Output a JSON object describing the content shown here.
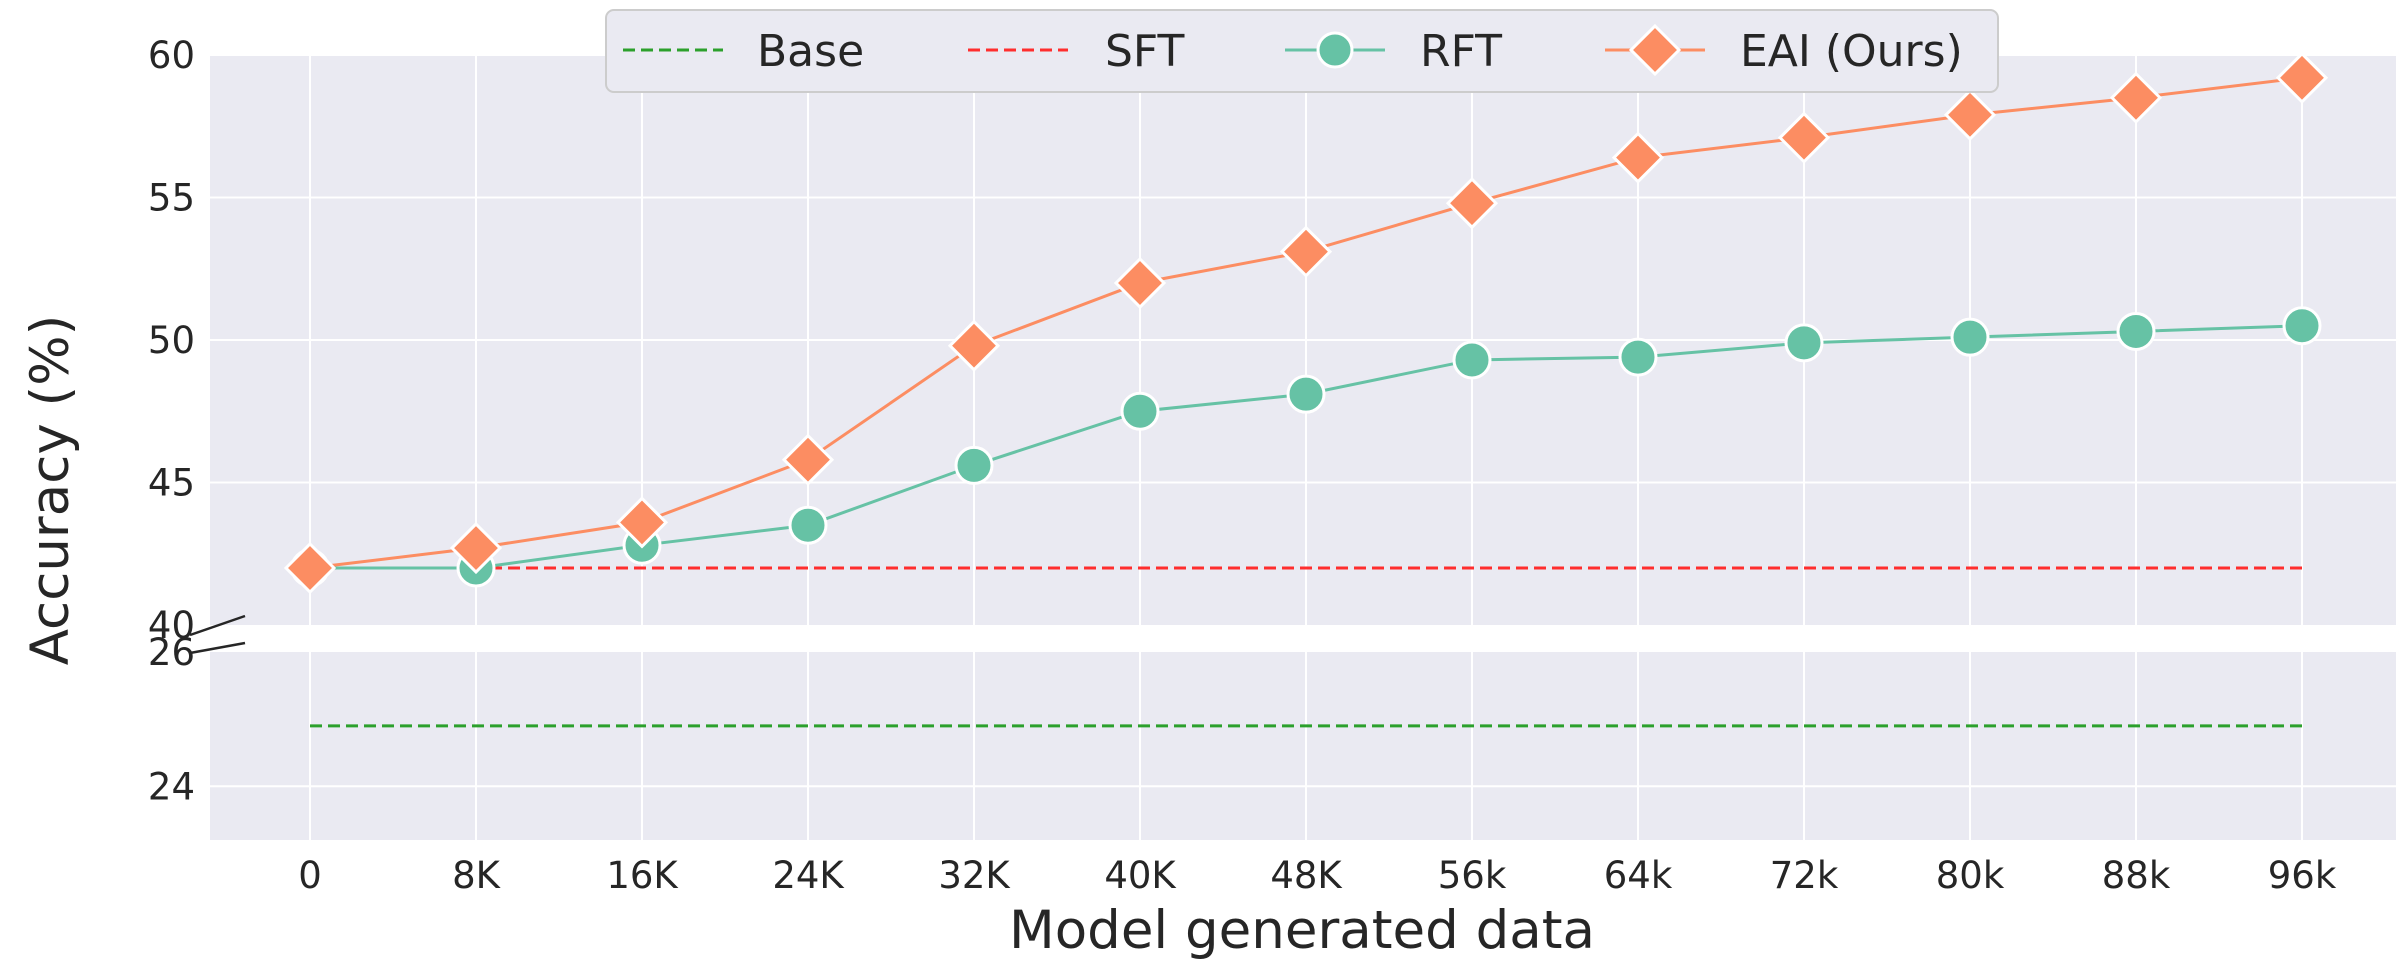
{
  "chart_data": {
    "type": "line",
    "title": "",
    "xlabel": "Model generated data",
    "ylabel": "Accuracy (%)",
    "categories": [
      "0",
      "8K",
      "16K",
      "24K",
      "32K",
      "40K",
      "48K",
      "56k",
      "64k",
      "72k",
      "80k",
      "88k",
      "96k"
    ],
    "y_axis_broken": true,
    "upper_panel": {
      "ylim": [
        40,
        60
      ],
      "yticks": [
        "40",
        "45",
        "50",
        "55",
        "60"
      ]
    },
    "lower_panel": {
      "ylim": [
        23.2,
        26
      ],
      "yticks": [
        "24",
        "26"
      ]
    },
    "legend": {
      "placement": "top-center",
      "entries": [
        "Base",
        "SFT",
        "RFT",
        "EAI (Ours)"
      ]
    },
    "series": [
      {
        "name": "Base",
        "style": "dashed",
        "marker": "none",
        "color": "#2ca02c",
        "values": [
          24.9,
          24.9,
          24.9,
          24.9,
          24.9,
          24.9,
          24.9,
          24.9,
          24.9,
          24.9,
          24.9,
          24.9,
          24.9
        ]
      },
      {
        "name": "SFT",
        "style": "dashed",
        "marker": "none",
        "color": "#ff2e2e",
        "values": [
          42.0,
          42.0,
          42.0,
          42.0,
          42.0,
          42.0,
          42.0,
          42.0,
          42.0,
          42.0,
          42.0,
          42.0,
          42.0
        ]
      },
      {
        "name": "RFT",
        "style": "solid",
        "marker": "circle",
        "color": "#66c2a5",
        "values": [
          42.0,
          42.0,
          42.8,
          43.5,
          45.6,
          47.5,
          48.1,
          49.3,
          49.4,
          49.9,
          50.1,
          50.3,
          50.5
        ]
      },
      {
        "name": "EAI (Ours)",
        "style": "solid",
        "marker": "diamond",
        "color": "#fc8d62",
        "values": [
          42.0,
          42.7,
          43.6,
          45.8,
          49.8,
          52.0,
          53.1,
          54.8,
          56.4,
          57.1,
          57.9,
          58.5,
          59.2
        ]
      }
    ]
  }
}
